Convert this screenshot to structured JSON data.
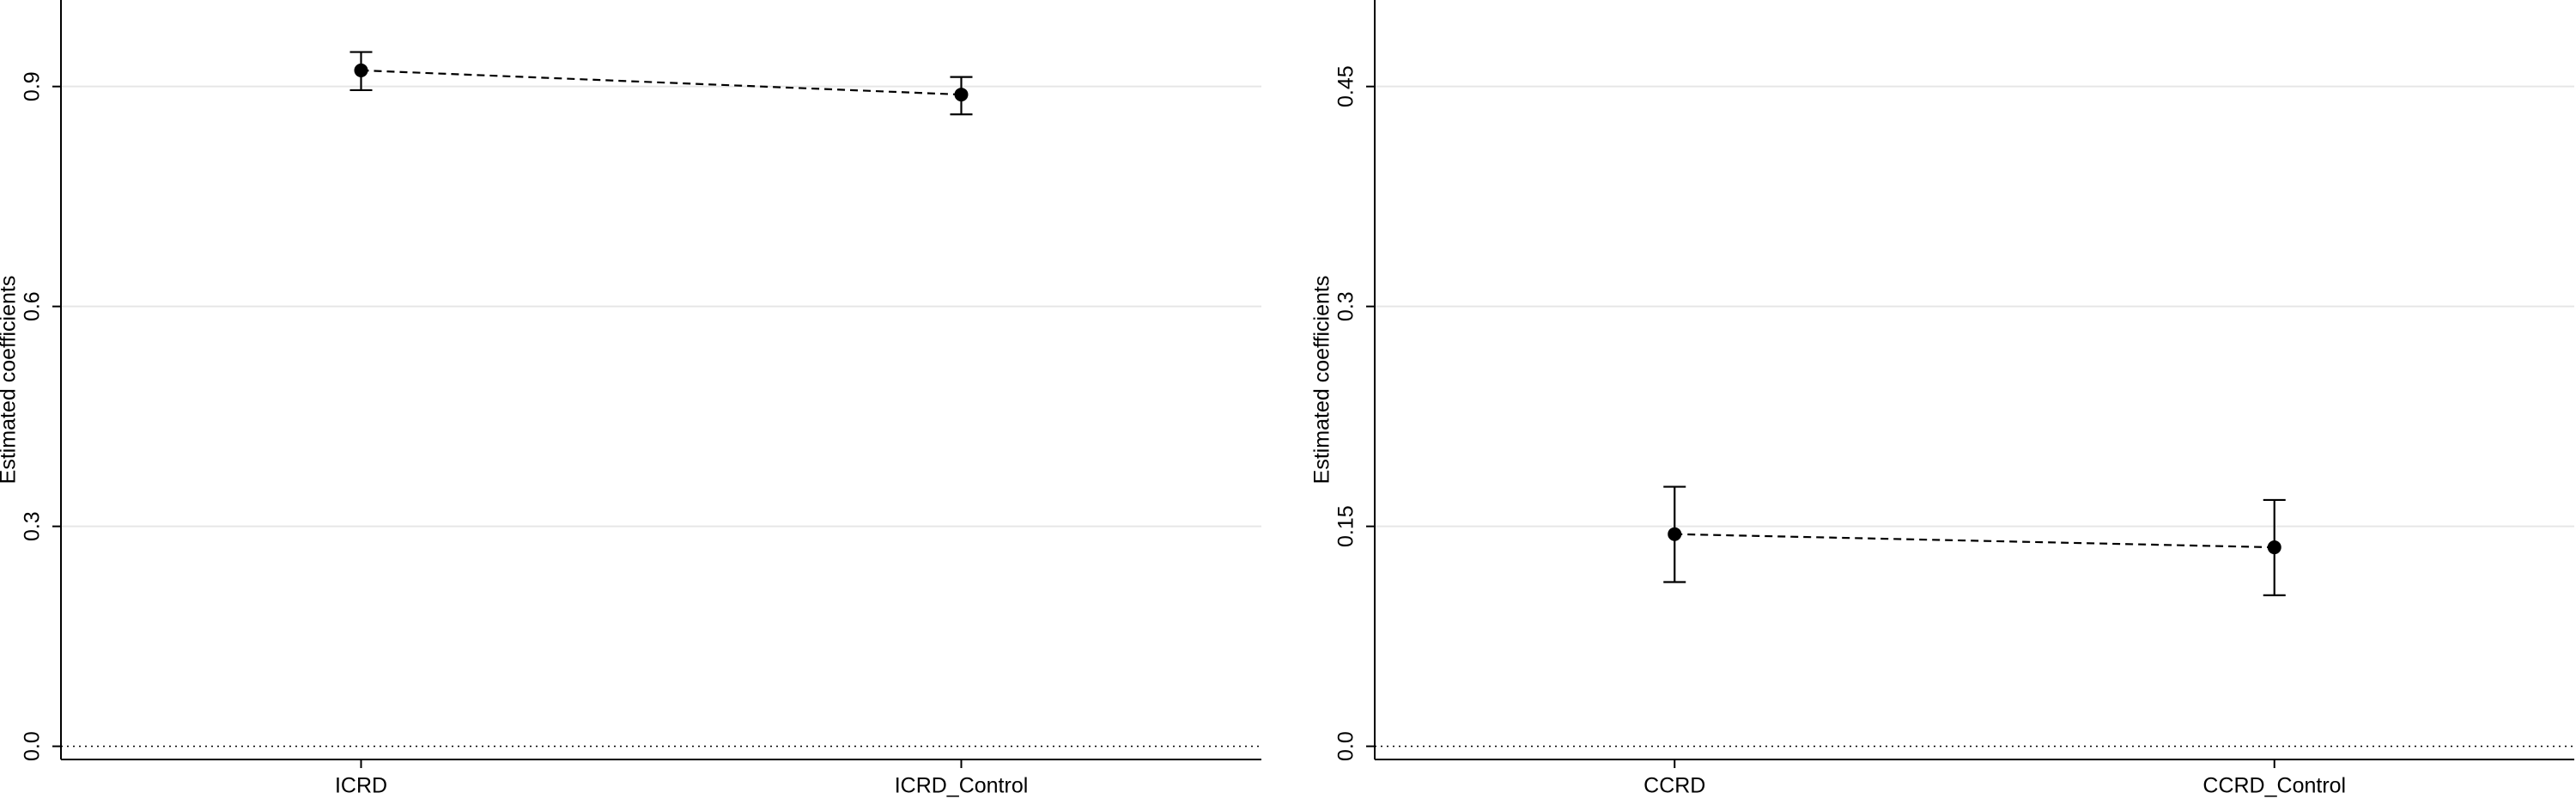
{
  "chart_data": [
    {
      "type": "line",
      "y_label": "Estimated coefficients",
      "categories": [
        "ICRD",
        "ICRD_Control"
      ],
      "series": [
        {
          "color": "#000000",
          "values": [
            0.922,
            0.889
          ],
          "ci_lower": [
            0.895,
            0.862
          ],
          "ci_upper": [
            0.947,
            0.913
          ]
        }
      ],
      "ylim": [
        -0.018,
        1.018
      ],
      "yticks": [
        {
          "value": 0,
          "label": "0.0"
        },
        0.3,
        0.6,
        0.9
      ],
      "grid": true,
      "zero_line": true
    },
    {
      "type": "line",
      "y_label": "Estimated coefficients",
      "categories": [
        "CCRD",
        "CCRD_Control"
      ],
      "series": [
        {
          "color": "#000000",
          "values": [
            0.1447,
            0.1357
          ],
          "ci_lower": [
            0.112,
            0.103
          ],
          "ci_upper": [
            0.177,
            0.168
          ]
        }
      ],
      "ylim": [
        -0.009,
        0.509
      ],
      "yticks": [
        {
          "value": 0,
          "label": "0.0"
        },
        0.15,
        0.3,
        0.45
      ],
      "grid": true,
      "zero_line": true
    }
  ]
}
